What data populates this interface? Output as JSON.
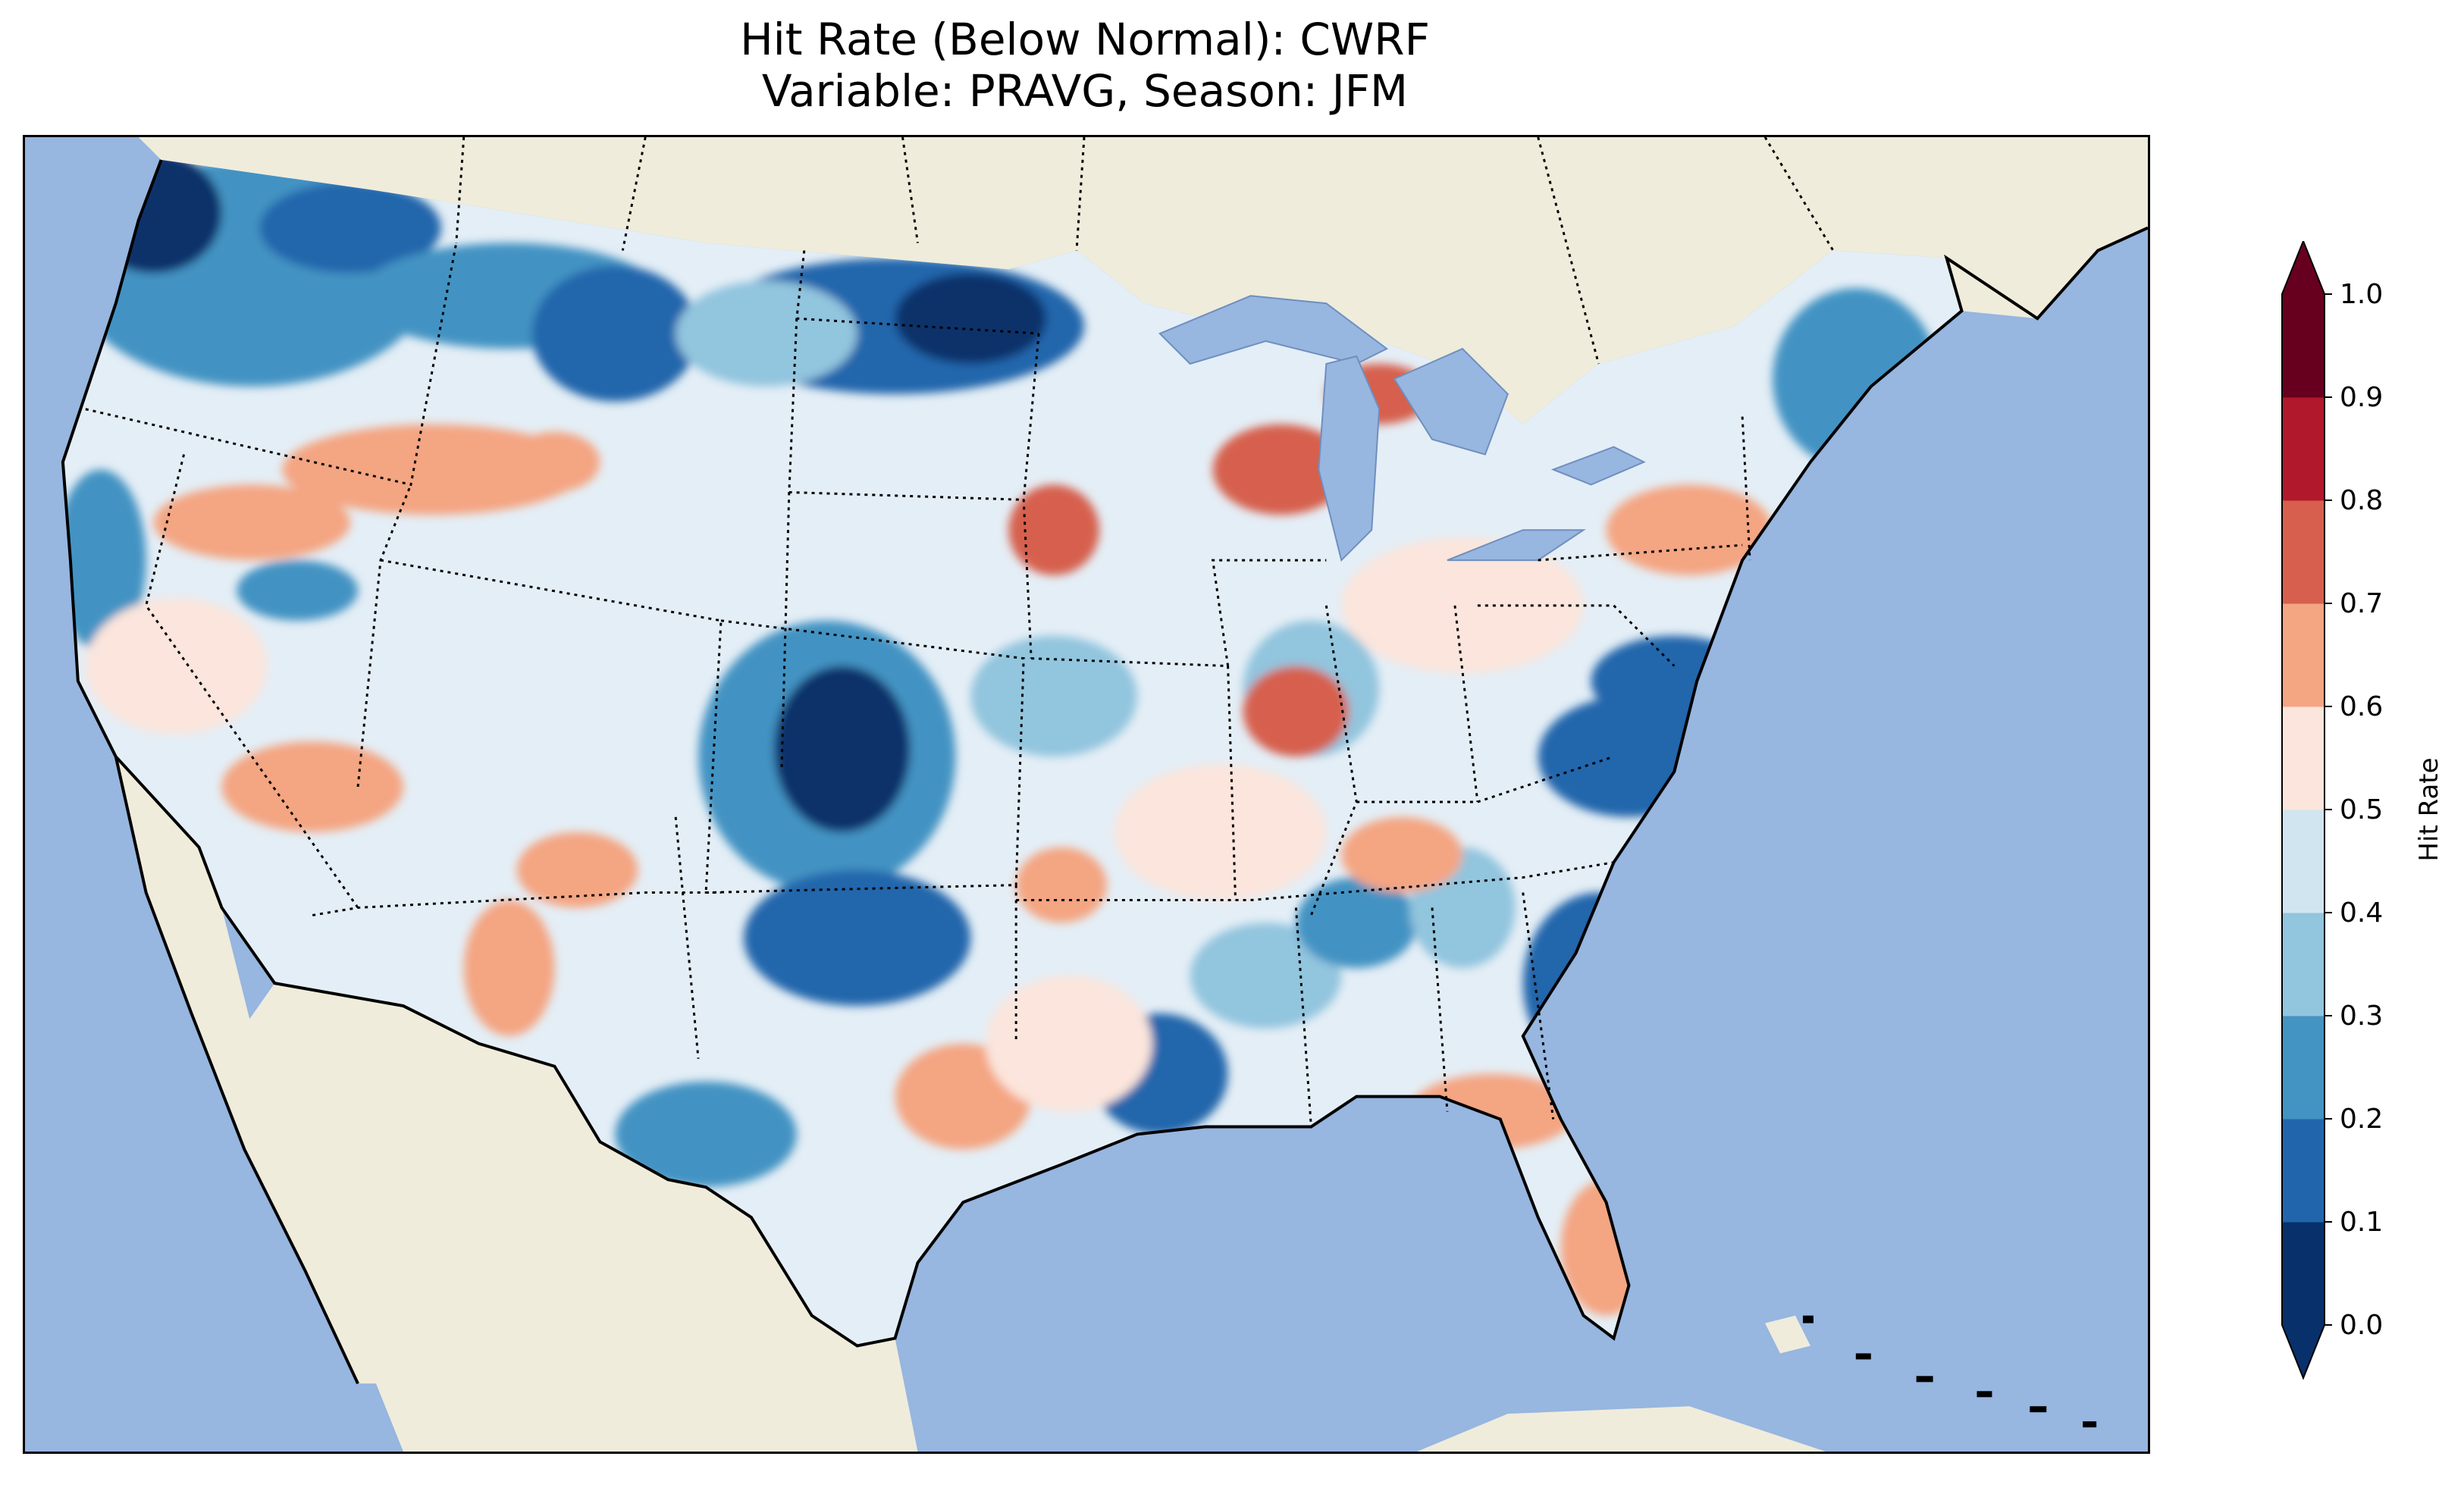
{
  "title": {
    "line1": "Hit Rate (Below Normal): CWRF",
    "line2": "Variable: PRAVG, Season: JFM"
  },
  "colorbar": {
    "label": "Hit Rate",
    "ticks": [
      "0.0",
      "0.1",
      "0.2",
      "0.3",
      "0.4",
      "0.5",
      "0.6",
      "0.7",
      "0.8",
      "0.9",
      "1.0"
    ],
    "colors": [
      "#08306b",
      "#2166ac",
      "#4393c3",
      "#92c5de",
      "#d1e5f0",
      "#fbe5dc",
      "#f4a582",
      "#d6604d",
      "#b2182b",
      "#67001f"
    ],
    "extend": "both"
  },
  "map": {
    "ocean_color": "#97b6e0",
    "land_color": "#efecdb",
    "region": "Contiguous United States"
  }
}
